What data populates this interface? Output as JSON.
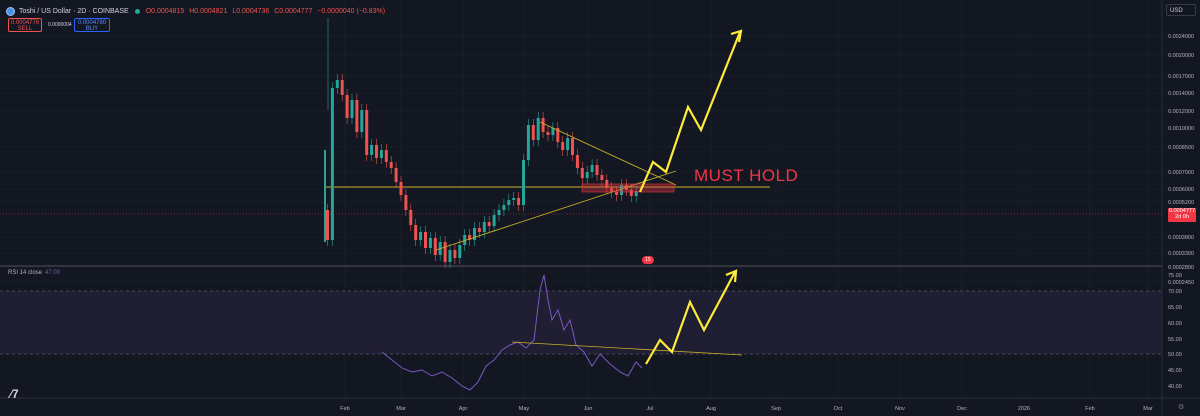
{
  "header": {
    "symbol": "Toshi / US Dollar · 2D · COINBASE",
    "ohlc": [
      "O0.0004815",
      "H0.0004821",
      "L0.0004736",
      "C0.0004777",
      "−0.0000040 (−0.83%)"
    ]
  },
  "trade": {
    "sell_price": "0.0004776",
    "sell_label": "SELL",
    "spread": "0.0000004",
    "buy_price": "0.0004780",
    "buy_label": "BUY"
  },
  "currency": "USD",
  "current_price": {
    "value": "0.0004777",
    "countdown": "2d 0h"
  },
  "price_axis": [
    "0.0024000",
    "0.0020000",
    "0.0017000",
    "0.0014000",
    "0.0012000",
    "0.0010000",
    "0.0008500",
    "0.0007000",
    "0.0006000",
    "0.0005200",
    "0.0003800",
    "0.0003300",
    "0.0002800",
    "0.0002450"
  ],
  "rsi": {
    "label": "RSI 14 close",
    "value": "47.00",
    "axis": [
      "75.00",
      "70.00",
      "65.00",
      "60.00",
      "55.00",
      "50.00",
      "45.00",
      "40.00"
    ]
  },
  "time_axis": [
    "Feb",
    "Mar",
    "Apr",
    "May",
    "Jun",
    "Jul",
    "Aug",
    "Sep",
    "Oct",
    "Nov",
    "Dec",
    "2026",
    "Feb",
    "Mar"
  ],
  "annotation": {
    "text": "MUST HOLD"
  },
  "badge": "15",
  "colors": {
    "up": "#26a69a",
    "down": "#ef5350",
    "arrow": "#ffeb3b",
    "rsi": "#7e57c2",
    "level": "#c9b02a",
    "zone": "#f23645"
  }
}
